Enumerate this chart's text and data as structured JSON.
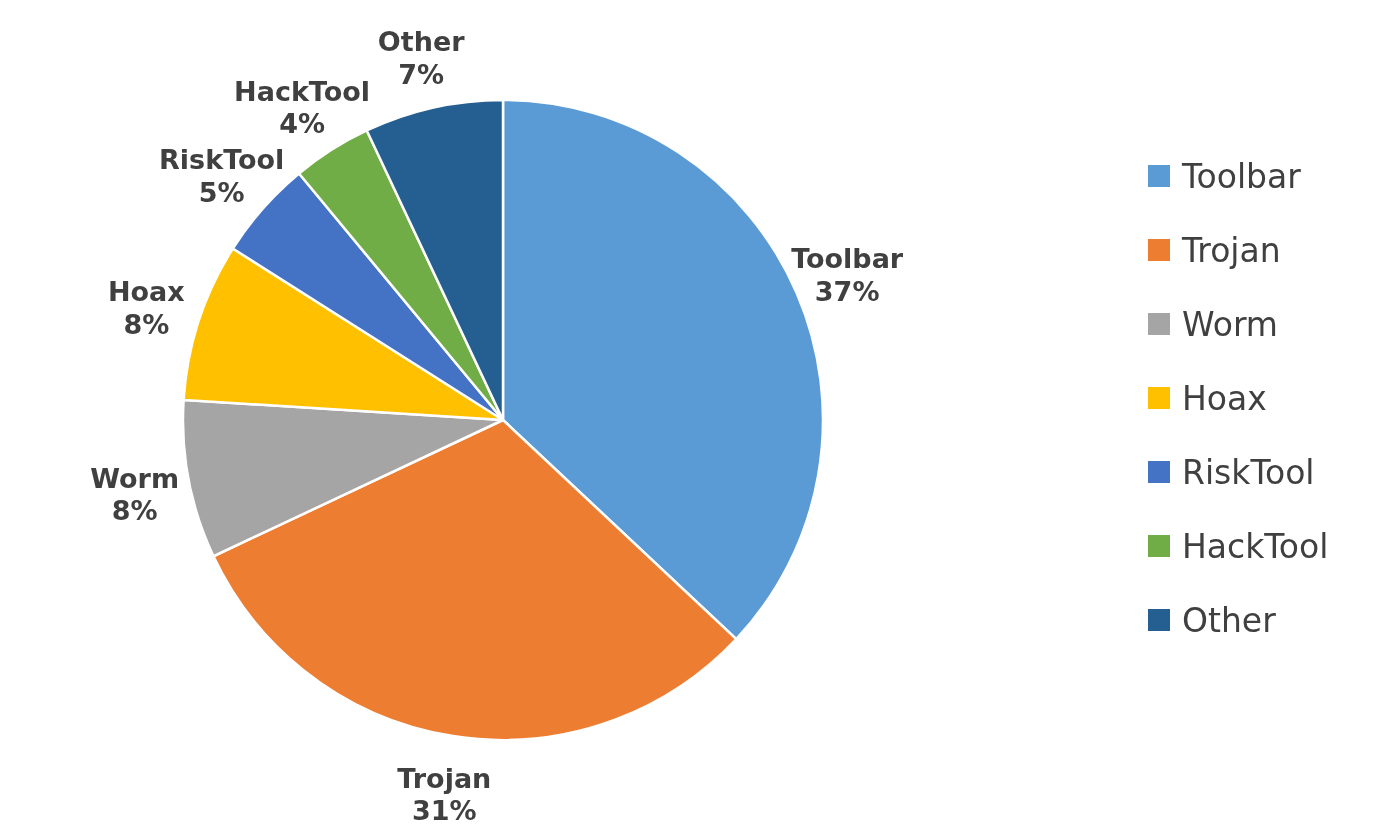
{
  "chart_data": {
    "type": "pie",
    "categories": [
      "Toolbar",
      "Trojan",
      "Worm",
      "Hoax",
      "RiskTool",
      "HackTool",
      "Other"
    ],
    "values": [
      37,
      31,
      8,
      8,
      5,
      4,
      7
    ],
    "value_labels": [
      "37%",
      "31%",
      "8%",
      "8%",
      "5%",
      "4%",
      "7%"
    ],
    "colors": [
      "#5b9bd5",
      "#ed7d31",
      "#a5a5a5",
      "#ffc000",
      "#4472c4",
      "#70ad47",
      "#255e91"
    ],
    "legend": "right"
  }
}
